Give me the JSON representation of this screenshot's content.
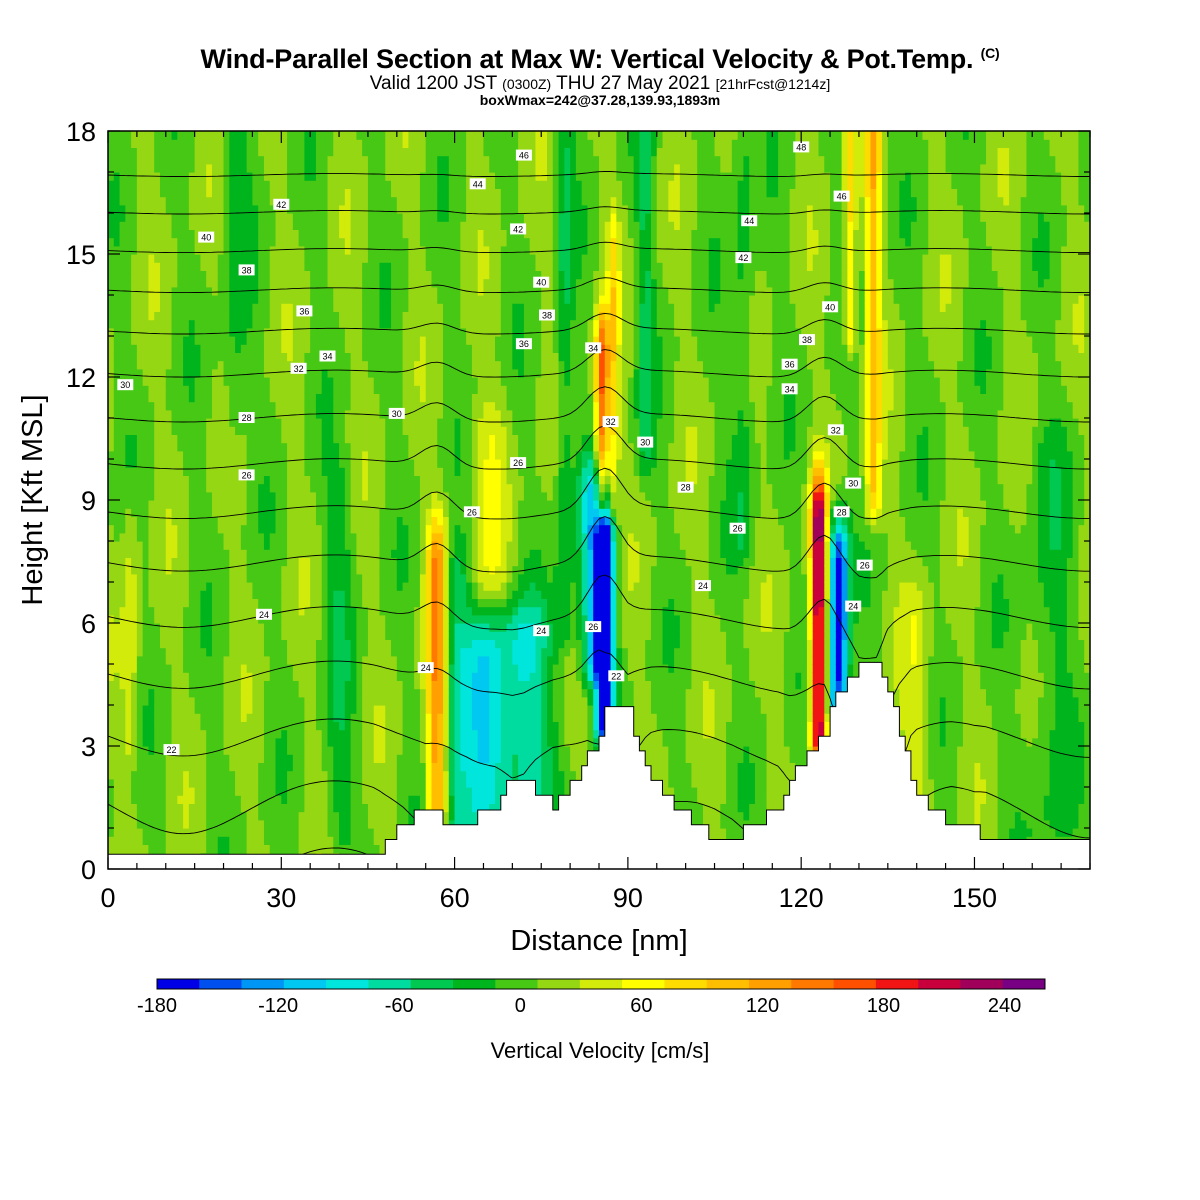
{
  "title": {
    "main": "Wind-Parallel Section at Max W: Vertical Velocity & Pot.Temp.",
    "copyright": "(C)",
    "valid_prefix": "Valid 1200 JST",
    "valid_utc": "(0300Z)",
    "valid_date": "THU 27 May 2021",
    "forecast": "[21hrFcst@1214z]",
    "box_info": "boxWmax=242@37.28,139.93,1893m"
  },
  "chart_data": {
    "type": "heatmap",
    "xlabel": "Distance [nm]",
    "ylabel": "Height [Kft MSL]",
    "xlim": [
      0,
      170
    ],
    "ylim": [
      0,
      18
    ],
    "x_ticks": [
      "0",
      "30",
      "60",
      "90",
      "120",
      "150"
    ],
    "x_tick_values": [
      0,
      30,
      60,
      90,
      120,
      150
    ],
    "y_ticks": [
      "0",
      "3",
      "6",
      "9",
      "12",
      "15",
      "18"
    ],
    "y_tick_values": [
      0,
      3,
      6,
      9,
      12,
      15,
      18
    ],
    "colorbar": {
      "label": "Vertical Velocity [cm/s]",
      "range": [
        -180,
        260
      ],
      "tick_labels": [
        "-180",
        "-120",
        "-60",
        "0",
        "60",
        "120",
        "180",
        "240"
      ],
      "tick_values": [
        -180,
        -120,
        -60,
        0,
        60,
        120,
        180,
        240
      ],
      "colors": [
        "#0000e6",
        "#0050f0",
        "#0096f5",
        "#00c8f0",
        "#00e6dc",
        "#00dca0",
        "#00c850",
        "#00b41e",
        "#46c814",
        "#96d714",
        "#d2eb0a",
        "#ffff00",
        "#ffdc00",
        "#ffbe00",
        "#ffa000",
        "#ff7800",
        "#ff5000",
        "#f01414",
        "#c8003c",
        "#a0005a",
        "#780082"
      ]
    },
    "field_anomalies": [
      {
        "x": 57,
        "ybot": 1.5,
        "ytop": 7.5,
        "hw": 1.8,
        "w": 130
      },
      {
        "x": 60,
        "ybot": 1.0,
        "ytop": 7.0,
        "hw": 2.5,
        "w": -60
      },
      {
        "x": 65,
        "ybot": 1.0,
        "ytop": 5.0,
        "hw": 4.0,
        "w": -80
      },
      {
        "x": 72,
        "ybot": 2.0,
        "ytop": 5.5,
        "hw": 5.0,
        "w": -80
      },
      {
        "x": 86,
        "ybot": 3.5,
        "ytop": 8.0,
        "hw": 1.6,
        "w": -180
      },
      {
        "x": 84,
        "ybot": 5.0,
        "ytop": 9.0,
        "hw": 2.5,
        "w": -100
      },
      {
        "x": 85.5,
        "ybot": 9.0,
        "ytop": 12.5,
        "hw": 1.2,
        "w": 150
      },
      {
        "x": 87.5,
        "ybot": 9.0,
        "ytop": 15.0,
        "hw": 1.0,
        "w": 60
      },
      {
        "x": 123,
        "ybot": 3.2,
        "ytop": 8.5,
        "hw": 1.3,
        "w": 230
      },
      {
        "x": 126.5,
        "ybot": 4.0,
        "ytop": 7.5,
        "hw": 1.7,
        "w": -180
      },
      {
        "x": 132.5,
        "ybot": 9.0,
        "ytop": 18,
        "hw": 1.3,
        "w": 90
      },
      {
        "x": 128.5,
        "ybot": 13.0,
        "ytop": 18,
        "hw": 1.0,
        "w": 70
      },
      {
        "x": 79,
        "ybot": 6.0,
        "ytop": 18,
        "hw": 1.5,
        "w": -40
      },
      {
        "x": 93,
        "ybot": 10.0,
        "ytop": 18,
        "hw": 1.5,
        "w": -40
      },
      {
        "x": 110,
        "ybot": 8.0,
        "ytop": 18,
        "hw": 2.0,
        "w": -30
      },
      {
        "x": 66,
        "ybot": 7.0,
        "ytop": 10.5,
        "hw": 3.0,
        "w": 35
      },
      {
        "x": 140,
        "ybot": 2.0,
        "ytop": 6.0,
        "hw": 2.5,
        "w": 30
      },
      {
        "x": 163,
        "ybot": 1.0,
        "ytop": 10.0,
        "hw": 4.0,
        "w": -25
      },
      {
        "x": 40,
        "ybot": 1.0,
        "ytop": 9.0,
        "hw": 2.5,
        "w": -30
      },
      {
        "x": 22,
        "ybot": 11.0,
        "ytop": 18,
        "hw": 2.5,
        "w": -25
      },
      {
        "x": 4,
        "ybot": 3.0,
        "ytop": 8.0,
        "hw": 1.5,
        "w": 30
      }
    ],
    "terrain": [
      [
        0,
        0.3
      ],
      [
        46,
        0.3
      ],
      [
        48,
        0.7
      ],
      [
        51,
        1.0
      ],
      [
        53,
        1.3
      ],
      [
        55,
        1.6
      ],
      [
        57,
        1.3
      ],
      [
        59,
        1.0
      ],
      [
        62,
        1.0
      ],
      [
        64,
        1.3
      ],
      [
        67,
        1.6
      ],
      [
        70,
        2.3
      ],
      [
        72,
        2.3
      ],
      [
        74,
        1.9
      ],
      [
        77,
        1.6
      ],
      [
        79,
        1.9
      ],
      [
        81,
        2.3
      ],
      [
        83,
        2.7
      ],
      [
        84,
        3.0
      ],
      [
        85,
        3.4
      ],
      [
        86,
        3.8
      ],
      [
        88,
        3.8
      ],
      [
        90,
        3.8
      ],
      [
        91,
        3.4
      ],
      [
        92,
        3.0
      ],
      [
        94,
        2.3
      ],
      [
        96,
        1.9
      ],
      [
        98,
        1.6
      ],
      [
        100,
        1.3
      ],
      [
        102,
        1.0
      ],
      [
        105,
        0.7
      ],
      [
        108,
        0.7
      ],
      [
        111,
        1.0
      ],
      [
        114,
        1.3
      ],
      [
        116,
        1.6
      ],
      [
        118,
        2.3
      ],
      [
        120,
        2.6
      ],
      [
        122,
        3.0
      ],
      [
        124,
        3.4
      ],
      [
        125,
        3.8
      ],
      [
        126,
        4.2
      ],
      [
        128,
        4.6
      ],
      [
        130,
        5.0
      ],
      [
        133,
        5.1
      ],
      [
        134,
        4.8
      ],
      [
        135,
        4.2
      ],
      [
        136,
        3.8
      ],
      [
        137,
        3.4
      ],
      [
        138,
        3.0
      ],
      [
        139,
        2.3
      ],
      [
        140,
        1.9
      ],
      [
        142,
        1.6
      ],
      [
        144,
        1.3
      ],
      [
        146,
        1.0
      ],
      [
        150,
        1.0
      ],
      [
        152,
        0.6
      ],
      [
        170,
        0.6
      ]
    ],
    "isentrope_levels": [
      20,
      22,
      24,
      26,
      28,
      30,
      32,
      34,
      36,
      38,
      40,
      42,
      44,
      46,
      48
    ],
    "isentrope_labels": [
      {
        "text": "46",
        "x": 72,
        "y": 17.4
      },
      {
        "text": "44",
        "x": 64,
        "y": 16.7
      },
      {
        "text": "42",
        "x": 30,
        "y": 16.2
      },
      {
        "text": "42",
        "x": 71,
        "y": 15.6
      },
      {
        "text": "40",
        "x": 17,
        "y": 15.4
      },
      {
        "text": "38",
        "x": 24,
        "y": 14.6
      },
      {
        "text": "40",
        "x": 75,
        "y": 14.3
      },
      {
        "text": "36",
        "x": 34,
        "y": 13.6
      },
      {
        "text": "38",
        "x": 76,
        "y": 13.5
      },
      {
        "text": "36",
        "x": 72,
        "y": 12.8
      },
      {
        "text": "34",
        "x": 38,
        "y": 12.5
      },
      {
        "text": "34",
        "x": 84,
        "y": 12.7
      },
      {
        "text": "32",
        "x": 33,
        "y": 12.2
      },
      {
        "text": "30",
        "x": 3,
        "y": 11.8
      },
      {
        "text": "30",
        "x": 50,
        "y": 11.1
      },
      {
        "text": "28",
        "x": 24,
        "y": 11.0
      },
      {
        "text": "32",
        "x": 87,
        "y": 10.9
      },
      {
        "text": "30",
        "x": 93,
        "y": 10.4
      },
      {
        "text": "26",
        "x": 71,
        "y": 9.9
      },
      {
        "text": "26",
        "x": 24,
        "y": 9.6
      },
      {
        "text": "28",
        "x": 100,
        "y": 9.3
      },
      {
        "text": "26",
        "x": 63,
        "y": 8.7
      },
      {
        "text": "26",
        "x": 109,
        "y": 8.3
      },
      {
        "text": "24",
        "x": 103,
        "y": 6.9
      },
      {
        "text": "24",
        "x": 27,
        "y": 6.2
      },
      {
        "text": "24",
        "x": 75,
        "y": 5.8
      },
      {
        "text": "26",
        "x": 84,
        "y": 5.9
      },
      {
        "text": "24",
        "x": 55,
        "y": 4.9
      },
      {
        "text": "22",
        "x": 88,
        "y": 4.7
      },
      {
        "text": "22",
        "x": 11,
        "y": 2.9
      },
      {
        "text": "48",
        "x": 120,
        "y": 17.6
      },
      {
        "text": "46",
        "x": 127,
        "y": 16.4
      },
      {
        "text": "44",
        "x": 111,
        "y": 15.8
      },
      {
        "text": "42",
        "x": 110,
        "y": 14.9
      },
      {
        "text": "40",
        "x": 125,
        "y": 13.7
      },
      {
        "text": "38",
        "x": 121,
        "y": 12.9
      },
      {
        "text": "36",
        "x": 118,
        "y": 12.3
      },
      {
        "text": "34",
        "x": 118,
        "y": 11.7
      },
      {
        "text": "32",
        "x": 126,
        "y": 10.7
      },
      {
        "text": "30",
        "x": 129,
        "y": 9.4
      },
      {
        "text": "28",
        "x": 127,
        "y": 8.7
      },
      {
        "text": "26",
        "x": 131,
        "y": 7.4
      },
      {
        "text": "24",
        "x": 129,
        "y": 6.4
      }
    ]
  }
}
